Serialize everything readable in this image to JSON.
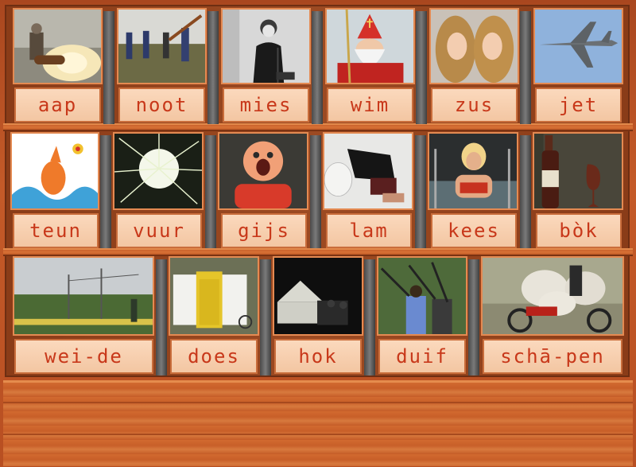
{
  "rows": [
    {
      "cards": [
        {
          "word": "aap",
          "image": "cannon-fire-photo"
        },
        {
          "word": "noot",
          "image": "people-in-field-photo"
        },
        {
          "word": "mies",
          "image": "singer-microphone-photo"
        },
        {
          "word": "wim",
          "image": "sinterklaas-photo"
        },
        {
          "word": "zus",
          "image": "twin-sisters-photo"
        },
        {
          "word": "jet",
          "image": "fighter-jet-photo"
        }
      ]
    },
    {
      "cards": [
        {
          "word": "teun",
          "image": "cartoon-fish-photo"
        },
        {
          "word": "vuur",
          "image": "fireworks-photo"
        },
        {
          "word": "gijs",
          "image": "gaping-statue-photo"
        },
        {
          "word": "lam",
          "image": "person-at-toilet-photo"
        },
        {
          "word": "kees",
          "image": "woman-in-pool-photo"
        },
        {
          "word": "bòk",
          "image": "beer-bottle-photo"
        }
      ]
    },
    {
      "cards": [
        {
          "word": "wei-de",
          "image": "meadow-photo"
        },
        {
          "word": "does",
          "image": "portable-toilet-photo"
        },
        {
          "word": "hok",
          "image": "tent-at-night-photo"
        },
        {
          "word": "duif",
          "image": "hunters-with-guns-photo"
        },
        {
          "word": "schā-pen",
          "image": "sheep-on-motorbike-photo"
        }
      ]
    }
  ],
  "colors": {
    "board": "#c45a28",
    "word_text": "#c8381a",
    "word_bg": "#fbd9bd",
    "card_border": "#e48a52"
  }
}
